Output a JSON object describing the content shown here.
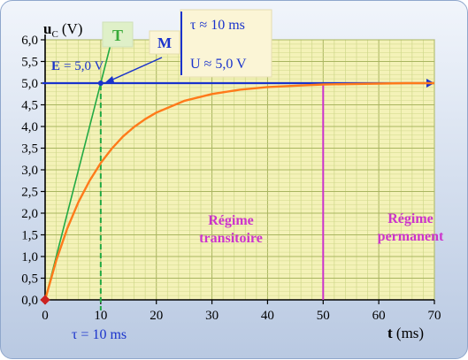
{
  "chart_data": {
    "type": "line",
    "ylabel_main": "u",
    "ylabel_sub": "C",
    "ylabel_unit": "(V)",
    "xlabel": "t (ms)",
    "xlim": [
      0,
      70
    ],
    "ylim": [
      0,
      6
    ],
    "x_ticks": [
      "0",
      "10",
      "20",
      "30",
      "40",
      "50",
      "60",
      "70"
    ],
    "y_ticks": [
      "0,0",
      "0,5",
      "1,0",
      "1,5",
      "2,0",
      "2,5",
      "3,0",
      "3,5",
      "4,0",
      "4,5",
      "5,0",
      "5,5",
      "6,0"
    ],
    "grid": true,
    "series": [
      {
        "kind": "charging-curve",
        "color": "#ff7a1a",
        "points": [
          [
            0,
            0
          ],
          [
            2,
            0.91
          ],
          [
            4,
            1.65
          ],
          [
            6,
            2.26
          ],
          [
            8,
            2.75
          ],
          [
            10,
            3.16
          ],
          [
            12,
            3.49
          ],
          [
            14,
            3.77
          ],
          [
            16,
            3.99
          ],
          [
            18,
            4.17
          ],
          [
            20,
            4.32
          ],
          [
            25,
            4.59
          ],
          [
            30,
            4.75
          ],
          [
            35,
            4.85
          ],
          [
            40,
            4.91
          ],
          [
            45,
            4.94
          ],
          [
            50,
            4.97
          ],
          [
            55,
            4.98
          ],
          [
            60,
            4.99
          ],
          [
            65,
            5.0
          ],
          [
            70,
            5.0
          ]
        ]
      },
      {
        "kind": "tangent",
        "color": "#22aa44",
        "points": [
          [
            0,
            0
          ],
          [
            12,
            6
          ]
        ]
      },
      {
        "kind": "asymptote",
        "color": "#1a33cc",
        "points": [
          [
            0,
            5
          ],
          [
            70,
            5
          ]
        ]
      }
    ],
    "tau_line": {
      "x": 10,
      "color": "#22aa44"
    },
    "regime_line": {
      "x": 50,
      "color": "#cc33cc"
    },
    "annotations": {
      "E_prefix": "E",
      "E_value": "= 5,0 V",
      "T_label": "T",
      "M_label": "M",
      "tau_box": "τ ≈ 10 ms",
      "U_box": "U ≈ 5,0 V",
      "tau_axis": "τ = 10 ms",
      "regime_transitoire": [
        "Régime",
        "transitoire"
      ],
      "regime_permanent": [
        "Régime",
        "permanent"
      ]
    },
    "colors": {
      "plot_bg": "#f4f2b8",
      "grid_minor": "#cfd88a",
      "grid_major": "#a9b560",
      "label_blue": "#1a33cc",
      "label_pink": "#cc33cc",
      "origin_marker": "#cc2222"
    }
  }
}
